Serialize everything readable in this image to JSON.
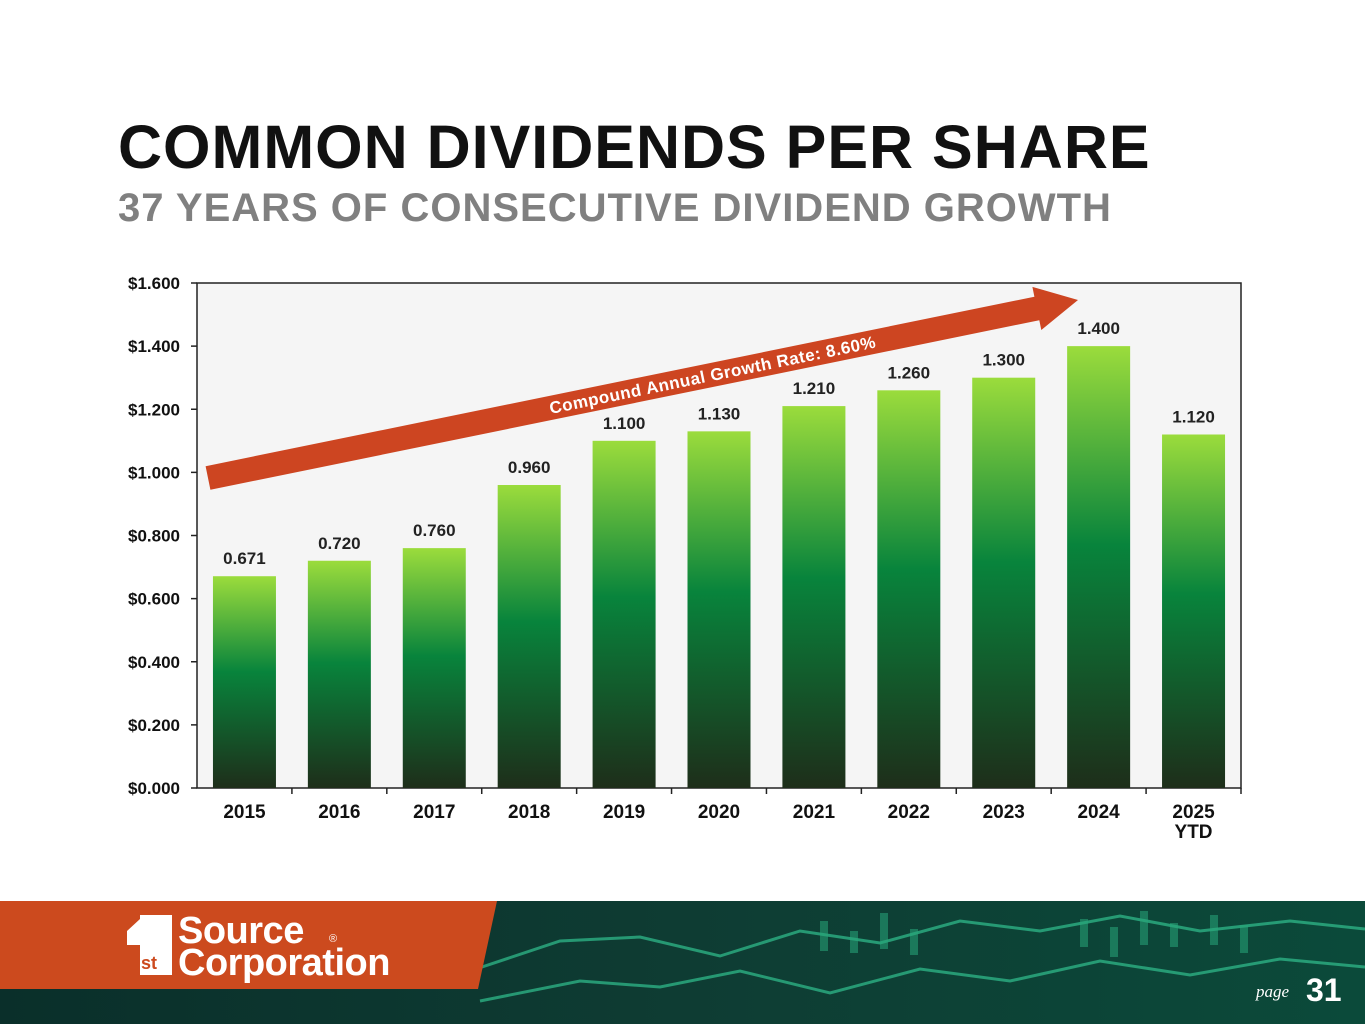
{
  "header": {
    "title": "COMMON DIVIDENDS PER SHARE",
    "subtitle": "37 YEARS OF CONSECUTIVE DIVIDEND GROWTH"
  },
  "chart_data": {
    "type": "bar",
    "title": "COMMON DIVIDENDS PER SHARE",
    "categories": [
      "2015",
      "2016",
      "2017",
      "2018",
      "2019",
      "2020",
      "2021",
      "2022",
      "2023",
      "2024",
      "2025\nYTD"
    ],
    "values": [
      0.671,
      0.72,
      0.76,
      0.96,
      1.1,
      1.13,
      1.21,
      1.26,
      1.3,
      1.4,
      1.12
    ],
    "value_labels": [
      "0.671",
      "0.720",
      "0.760",
      "0.960",
      "1.100",
      "1.130",
      "1.210",
      "1.260",
      "1.300",
      "1.400",
      "1.120"
    ],
    "ylim": [
      0,
      1.6
    ],
    "yticks": [
      "$0.000",
      "$0.200",
      "$0.400",
      "$0.600",
      "$0.800",
      "$1.000",
      "$1.200",
      "$1.400",
      "$1.600"
    ],
    "xlabel": "",
    "ylabel": "",
    "grid": false,
    "annotation": "Compound Annual Growth Rate: 8.60%",
    "colors": {
      "bar_top": "#9bdc3c",
      "bar_mid": "#08843c",
      "bar_bottom": "#1e2e1a",
      "plot_bg": "#f5f5f5",
      "arrow": "#cd4521"
    }
  },
  "footer": {
    "logo_mark": "st",
    "brand_line1": "Source",
    "brand_line2": "Corporation",
    "registered": "®",
    "page_label": "page",
    "page_number": "31",
    "colors": {
      "orange": "#cc4a1e",
      "dark_teal": "#0b2a26"
    }
  }
}
